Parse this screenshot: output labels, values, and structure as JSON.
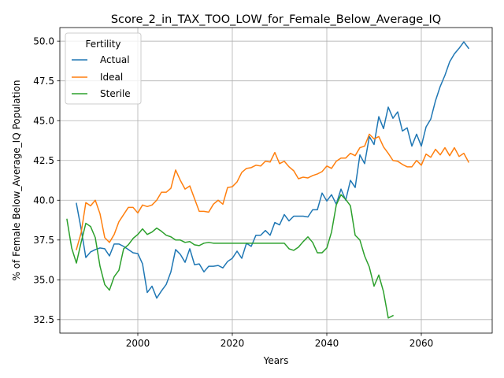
{
  "chart_data": {
    "type": "line",
    "title": "Score_2_in_TAX_TOO_LOW_for_Female_Below_Average_IQ",
    "xlabel": "Years",
    "ylabel": "% of Female Below_Average_IQ Population",
    "xlim": [
      1983.5,
      2075
    ],
    "ylim": [
      31.65,
      50.85
    ],
    "xticks": [
      2000,
      2020,
      2040,
      2060
    ],
    "yticks": [
      32.5,
      35.0,
      37.5,
      40.0,
      42.5,
      45.0,
      47.5,
      50.0
    ],
    "xtick_labels": [
      "2000",
      "2020",
      "2040",
      "2060"
    ],
    "ytick_labels": [
      "32.5",
      "35.0",
      "37.5",
      "40.0",
      "42.5",
      "45.0",
      "47.5",
      "50.0"
    ],
    "grid": true,
    "legend": {
      "title": "Fertility",
      "position": "top-left"
    },
    "series": [
      {
        "name": "Actual",
        "color": "#1f77b4",
        "x": [
          1987,
          1988,
          1989,
          1990,
          1991,
          1992,
          1993,
          1994,
          1995,
          1996,
          1997,
          1998,
          1999,
          2000,
          2001,
          2002,
          2003,
          2004,
          2005,
          2006,
          2007,
          2008,
          2009,
          2010,
          2011,
          2012,
          2013,
          2014,
          2015,
          2016,
          2017,
          2018,
          2019,
          2020,
          2021,
          2022,
          2023,
          2024,
          2025,
          2026,
          2027,
          2028,
          2029,
          2030,
          2031,
          2032,
          2033,
          2034,
          2035,
          2036,
          2037,
          2038,
          2039,
          2040,
          2041,
          2042,
          2043,
          2044,
          2045,
          2046,
          2047,
          2048,
          2049,
          2050,
          2051,
          2052,
          2053,
          2054,
          2055,
          2056,
          2057,
          2058,
          2059,
          2060,
          2061,
          2062,
          2063,
          2064,
          2065,
          2066,
          2067,
          2068,
          2069,
          2070
        ],
        "values": [
          39.8,
          38.2,
          36.4,
          36.75,
          36.9,
          37.0,
          36.95,
          36.5,
          37.25,
          37.25,
          37.1,
          36.9,
          36.7,
          36.65,
          36.0,
          34.2,
          34.6,
          33.85,
          34.3,
          34.7,
          35.5,
          36.9,
          36.6,
          36.1,
          36.95,
          35.95,
          36.0,
          35.5,
          35.85,
          35.85,
          35.9,
          35.75,
          36.15,
          36.35,
          36.8,
          36.35,
          37.3,
          37.1,
          37.8,
          37.8,
          38.1,
          37.8,
          38.6,
          38.45,
          39.1,
          38.7,
          39.0,
          39.0,
          39.0,
          38.95,
          39.4,
          39.4,
          40.45,
          39.95,
          40.35,
          39.75,
          40.7,
          40.0,
          41.25,
          40.8,
          42.85,
          42.3,
          44.0,
          43.5,
          45.25,
          44.5,
          45.85,
          45.15,
          45.55,
          44.35,
          44.55,
          43.4,
          44.15,
          43.4,
          44.6,
          45.1,
          46.25,
          47.15,
          47.85,
          48.7,
          49.2,
          49.55,
          49.95,
          49.55
        ]
      },
      {
        "name": "Ideal",
        "color": "#ff7f0e",
        "x": [
          1987,
          1988,
          1989,
          1990,
          1991,
          1992,
          1993,
          1994,
          1995,
          1996,
          1997,
          1998,
          1999,
          2000,
          2001,
          2002,
          2003,
          2004,
          2005,
          2006,
          2007,
          2008,
          2009,
          2010,
          2011,
          2012,
          2013,
          2014,
          2015,
          2016,
          2017,
          2018,
          2019,
          2020,
          2021,
          2022,
          2023,
          2024,
          2025,
          2026,
          2027,
          2028,
          2029,
          2030,
          2031,
          2032,
          2033,
          2034,
          2035,
          2036,
          2037,
          2038,
          2039,
          2040,
          2041,
          2042,
          2043,
          2044,
          2045,
          2046,
          2047,
          2048,
          2049,
          2050,
          2051,
          2052,
          2053,
          2054,
          2055,
          2056,
          2057,
          2058,
          2059,
          2060,
          2061,
          2062,
          2063,
          2064,
          2065,
          2066,
          2067,
          2068,
          2069,
          2070
        ],
        "values": [
          36.9,
          37.95,
          39.85,
          39.65,
          40.0,
          39.15,
          37.65,
          37.35,
          37.85,
          38.65,
          39.1,
          39.55,
          39.55,
          39.2,
          39.7,
          39.6,
          39.7,
          40.0,
          40.5,
          40.5,
          40.75,
          41.9,
          41.25,
          40.7,
          40.9,
          40.1,
          39.3,
          39.3,
          39.25,
          39.75,
          40.0,
          39.75,
          40.8,
          40.85,
          41.15,
          41.75,
          42.0,
          42.05,
          42.2,
          42.15,
          42.45,
          42.4,
          43.0,
          42.3,
          42.45,
          42.1,
          41.85,
          41.35,
          41.45,
          41.4,
          41.55,
          41.65,
          41.8,
          42.15,
          42.0,
          42.45,
          42.65,
          42.65,
          42.95,
          42.8,
          43.3,
          43.4,
          44.15,
          43.85,
          44.0,
          43.35,
          42.95,
          42.5,
          42.45,
          42.25,
          42.1,
          42.1,
          42.5,
          42.2,
          42.9,
          42.7,
          43.2,
          42.85,
          43.3,
          42.8,
          43.3,
          42.75,
          42.95,
          42.4
        ]
      },
      {
        "name": "Sterile",
        "color": "#2ca02c",
        "x": [
          1985,
          1986,
          1987,
          1988,
          1989,
          1990,
          1991,
          1992,
          1993,
          1994,
          1995,
          1996,
          1997,
          1998,
          1999,
          2000,
          2001,
          2002,
          2003,
          2004,
          2005,
          2006,
          2007,
          2008,
          2009,
          2010,
          2011,
          2012,
          2013,
          2014,
          2015,
          2016,
          2017,
          2018,
          2019,
          2020,
          2021,
          2022,
          2023,
          2024,
          2025,
          2026,
          2027,
          2028,
          2029,
          2030,
          2031,
          2032,
          2033,
          2034,
          2035,
          2036,
          2037,
          2038,
          2039,
          2040,
          2041,
          2042,
          2043,
          2044,
          2045,
          2046,
          2047,
          2048,
          2049,
          2050,
          2051,
          2052,
          2053,
          2054
        ],
        "values": [
          38.8,
          37.0,
          36.05,
          37.35,
          38.55,
          38.35,
          37.65,
          35.85,
          34.7,
          34.35,
          35.2,
          35.6,
          36.95,
          37.2,
          37.6,
          37.85,
          38.2,
          37.85,
          38.0,
          38.25,
          38.05,
          37.8,
          37.7,
          37.5,
          37.5,
          37.35,
          37.4,
          37.2,
          37.15,
          37.3,
          37.35,
          37.3,
          37.3,
          37.3,
          37.3,
          37.3,
          37.3,
          37.3,
          37.3,
          37.3,
          37.3,
          37.3,
          37.3,
          37.3,
          37.3,
          37.3,
          37.3,
          36.95,
          36.85,
          37.05,
          37.4,
          37.7,
          37.35,
          36.7,
          36.7,
          37.0,
          38.0,
          39.7,
          40.35,
          40.05,
          39.65,
          37.8,
          37.5,
          36.5,
          35.8,
          34.6,
          35.3,
          34.25,
          32.6,
          32.75
        ]
      }
    ]
  }
}
